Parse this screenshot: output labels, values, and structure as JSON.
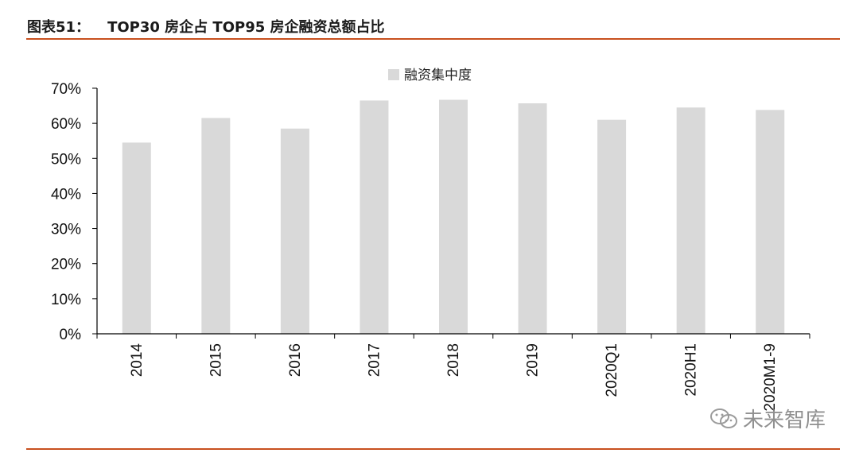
{
  "figure": {
    "label": "图表51：",
    "title": "TOP30 房企占 TOP95 房企融资总额占比"
  },
  "watermark": {
    "text": "未来智库",
    "icon": "wechat-icon"
  },
  "colors": {
    "bar": "#d9d9d9",
    "accent_rule": "#c8501e",
    "axis": "#000000"
  },
  "chart_data": {
    "type": "bar",
    "categories": [
      "2014",
      "2015",
      "2016",
      "2017",
      "2018",
      "2019",
      "2020Q1",
      "2020H1",
      "2020M1-9"
    ],
    "series": [
      {
        "name": "融资集中度",
        "values": [
          54.5,
          61.5,
          58.5,
          66.5,
          66.7,
          65.7,
          61.0,
          64.5,
          63.8
        ]
      }
    ],
    "y_ticks": [
      "0%",
      "10%",
      "20%",
      "30%",
      "40%",
      "50%",
      "60%",
      "70%"
    ],
    "ylim": [
      0,
      70
    ],
    "y_unit": "%",
    "xlabel": "",
    "ylabel": "",
    "legend_position": "top-center",
    "grid": false
  }
}
